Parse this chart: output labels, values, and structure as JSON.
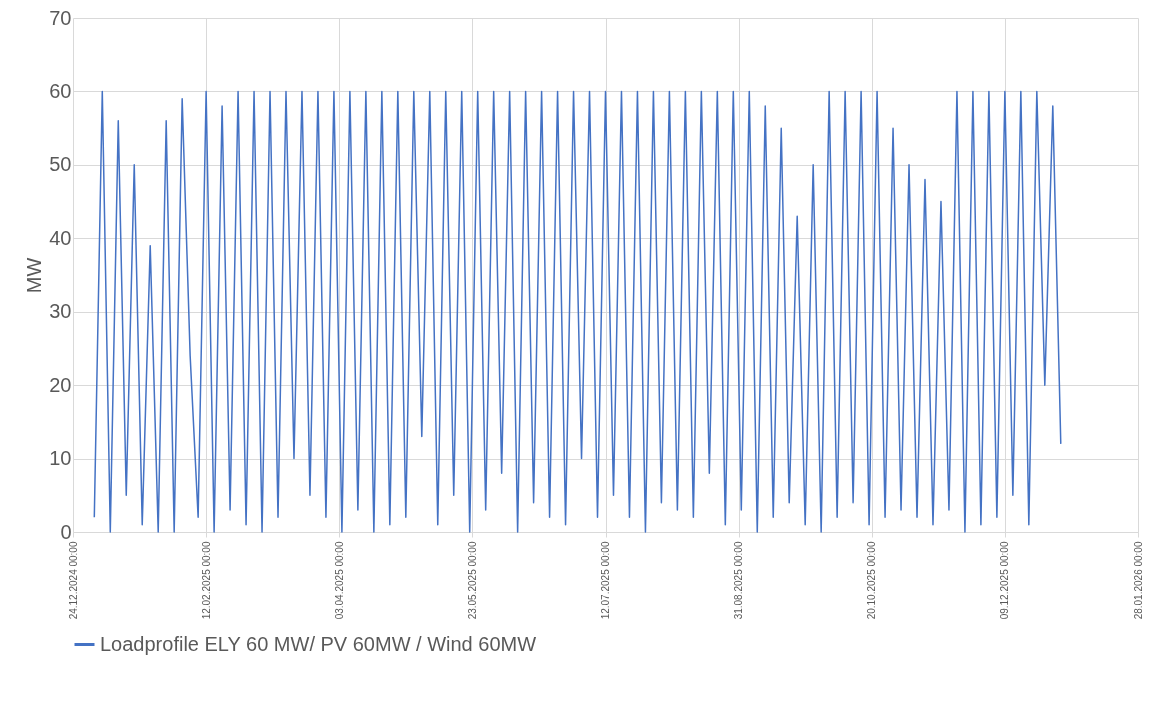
{
  "chart_data": {
    "type": "line",
    "ylabel": "MW",
    "legend": "bottom",
    "grid": true,
    "xlim": [
      "2024-12-24",
      "2026-01-28"
    ],
    "xticks": [
      {
        "value": "2024-12-24",
        "label": "24.12.2024 00:00"
      },
      {
        "value": "2025-02-12",
        "label": "12.02.2025 00:00"
      },
      {
        "value": "2025-04-03",
        "label": "03.04.2025 00:00"
      },
      {
        "value": "2025-05-23",
        "label": "23.05.2025 00:00"
      },
      {
        "value": "2025-07-12",
        "label": "12.07.2025 00:00"
      },
      {
        "value": "2025-08-31",
        "label": "31.08.2025 00:00"
      },
      {
        "value": "2025-10-20",
        "label": "20.10.2025 00:00"
      },
      {
        "value": "2025-12-09",
        "label": "09.12.2025 00:00"
      },
      {
        "value": "2026-01-28",
        "label": "28.01.2026 00:00"
      }
    ],
    "ylim": [
      0,
      70
    ],
    "yticks": [
      0,
      10,
      20,
      30,
      40,
      50,
      60,
      70
    ],
    "x": [
      "2025-01-01",
      "2025-01-04",
      "2025-01-07",
      "2025-01-10",
      "2025-01-13",
      "2025-01-16",
      "2025-01-19",
      "2025-01-22",
      "2025-01-25",
      "2025-01-28",
      "2025-01-31",
      "2025-02-03",
      "2025-02-06",
      "2025-02-09",
      "2025-02-12",
      "2025-02-15",
      "2025-02-18",
      "2025-02-21",
      "2025-02-24",
      "2025-02-27",
      "2025-03-02",
      "2025-03-05",
      "2025-03-08",
      "2025-03-11",
      "2025-03-14",
      "2025-03-17",
      "2025-03-20",
      "2025-03-23",
      "2025-03-26",
      "2025-03-29",
      "2025-04-01",
      "2025-04-04",
      "2025-04-07",
      "2025-04-10",
      "2025-04-13",
      "2025-04-16",
      "2025-04-19",
      "2025-04-22",
      "2025-04-25",
      "2025-04-28",
      "2025-05-01",
      "2025-05-04",
      "2025-05-07",
      "2025-05-10",
      "2025-05-13",
      "2025-05-16",
      "2025-05-19",
      "2025-05-22",
      "2025-05-25",
      "2025-05-28",
      "2025-05-31",
      "2025-06-03",
      "2025-06-06",
      "2025-06-09",
      "2025-06-12",
      "2025-06-15",
      "2025-06-18",
      "2025-06-21",
      "2025-06-24",
      "2025-06-27",
      "2025-06-30",
      "2025-07-03",
      "2025-07-06",
      "2025-07-09",
      "2025-07-12",
      "2025-07-15",
      "2025-07-18",
      "2025-07-21",
      "2025-07-24",
      "2025-07-27",
      "2025-07-30",
      "2025-08-02",
      "2025-08-05",
      "2025-08-08",
      "2025-08-11",
      "2025-08-14",
      "2025-08-17",
      "2025-08-20",
      "2025-08-23",
      "2025-08-26",
      "2025-08-29",
      "2025-09-01",
      "2025-09-04",
      "2025-09-07",
      "2025-09-10",
      "2025-09-13",
      "2025-09-16",
      "2025-09-19",
      "2025-09-22",
      "2025-09-25",
      "2025-09-28",
      "2025-10-01",
      "2025-10-04",
      "2025-10-07",
      "2025-10-10",
      "2025-10-13",
      "2025-10-16",
      "2025-10-19",
      "2025-10-22",
      "2025-10-25",
      "2025-10-28",
      "2025-10-31",
      "2025-11-03",
      "2025-11-06",
      "2025-11-09",
      "2025-11-12",
      "2025-11-15",
      "2025-11-18",
      "2025-11-21",
      "2025-11-24",
      "2025-11-27",
      "2025-11-30",
      "2025-12-03",
      "2025-12-06",
      "2025-12-09",
      "2025-12-12",
      "2025-12-15",
      "2025-12-18",
      "2025-12-21",
      "2025-12-24",
      "2025-12-27",
      "2025-12-30"
    ],
    "series": [
      {
        "name": "Loadprofile ELY 60 MW/ PV 60MW / Wind 60MW",
        "color": "#4472c4",
        "values": [
          2,
          60,
          0,
          56,
          5,
          50,
          1,
          39,
          0,
          56,
          0,
          59,
          24,
          2,
          60,
          0,
          58,
          3,
          60,
          1,
          60,
          0,
          60,
          2,
          60,
          10,
          60,
          5,
          60,
          2,
          60,
          0,
          60,
          3,
          60,
          0,
          60,
          1,
          60,
          2,
          60,
          13,
          60,
          1,
          60,
          5,
          60,
          0,
          60,
          3,
          60,
          8,
          60,
          0,
          60,
          4,
          60,
          2,
          60,
          1,
          60,
          10,
          60,
          2,
          60,
          5,
          60,
          2,
          60,
          0,
          60,
          4,
          60,
          3,
          60,
          2,
          60,
          8,
          60,
          1,
          60,
          3,
          60,
          0,
          58,
          2,
          55,
          4,
          43,
          1,
          50,
          0,
          60,
          2,
          60,
          4,
          60,
          1,
          60,
          2,
          55,
          3,
          50,
          2,
          48,
          1,
          45,
          3,
          60,
          0,
          60,
          1,
          60,
          2,
          60,
          5,
          60,
          1,
          60,
          20,
          58,
          12
        ]
      }
    ]
  }
}
